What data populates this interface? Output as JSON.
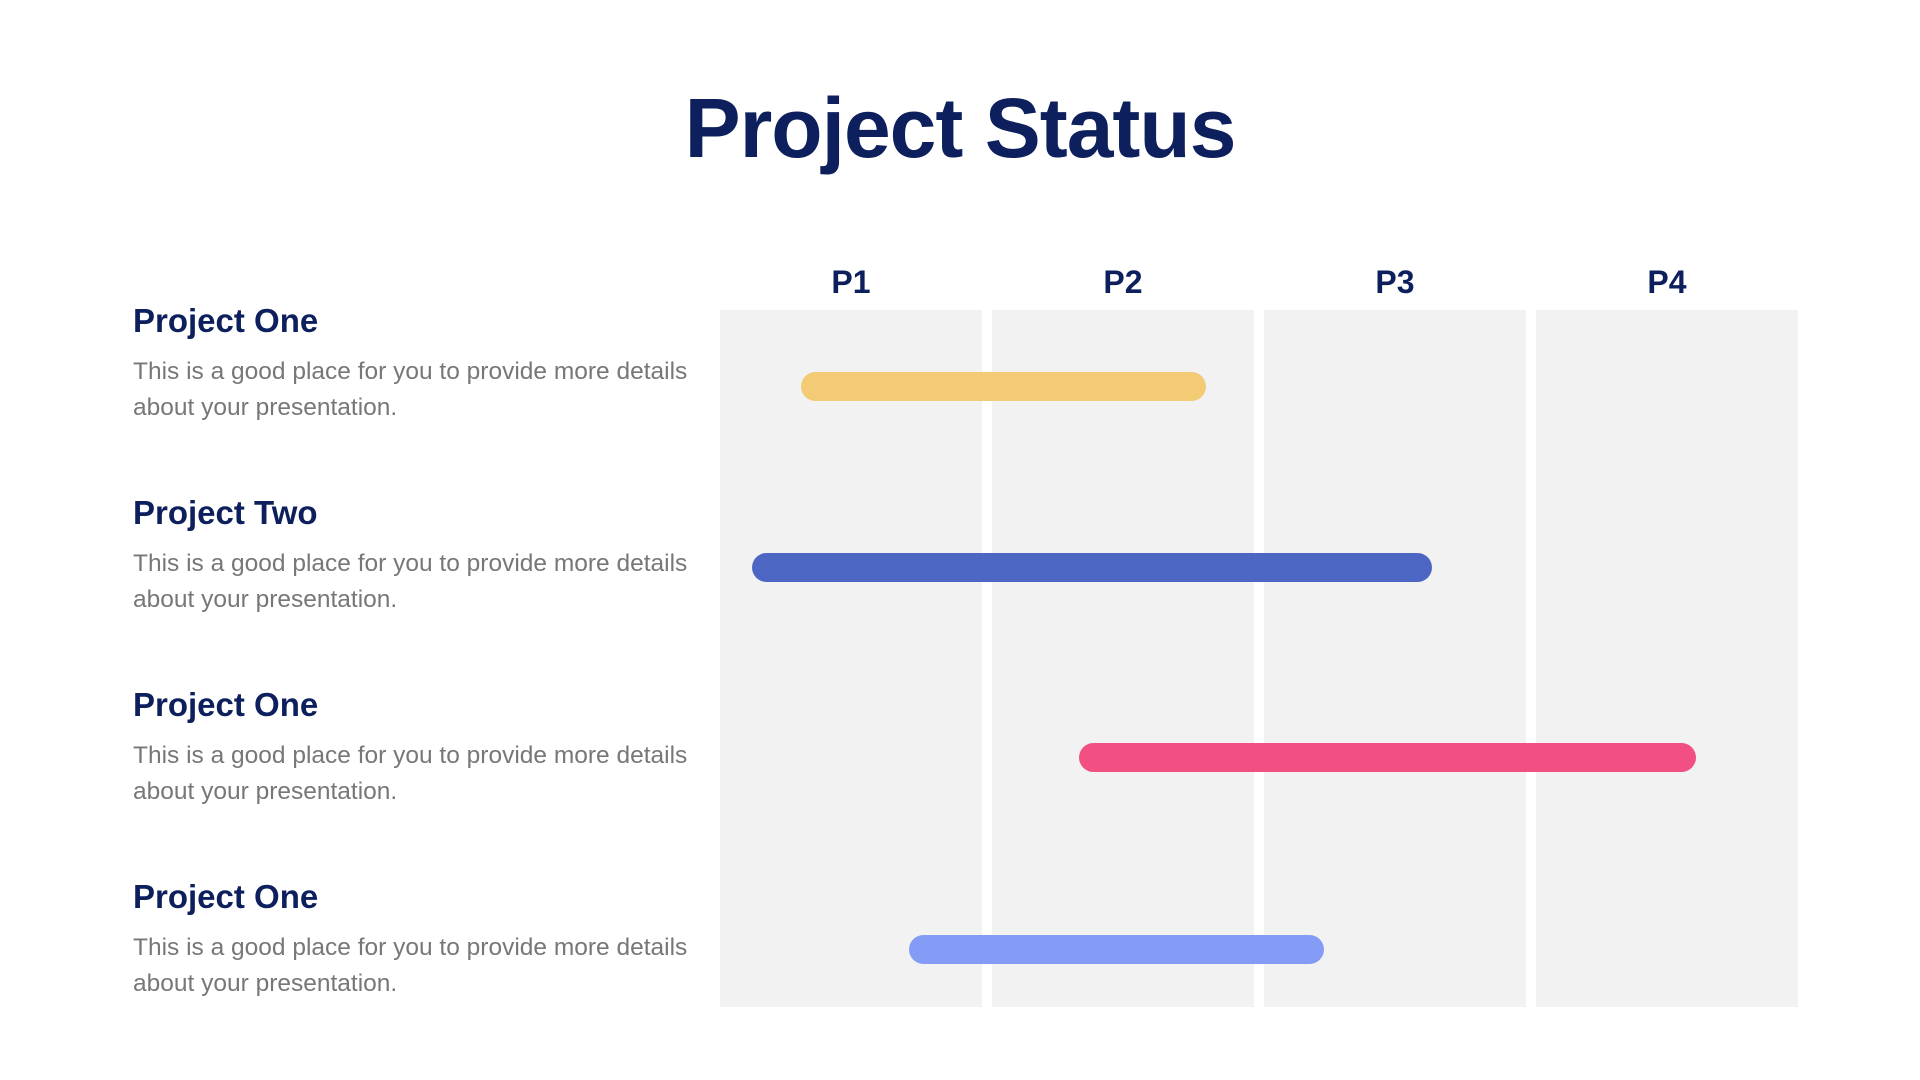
{
  "title": "Project Status",
  "projects": [
    {
      "name": "Project One",
      "description": "This is a good place for you to provide more details about your presentation."
    },
    {
      "name": "Project Two",
      "description": "This is a good place for you to provide more details about your presentation."
    },
    {
      "name": "Project One",
      "description": "This is a good place for you to provide more details about your presentation."
    },
    {
      "name": "Project One",
      "description": "This is a good place for you to provide more details about your presentation."
    }
  ],
  "chart_data": {
    "type": "gantt",
    "periods": [
      "P1",
      "P2",
      "P3",
      "P4"
    ],
    "bars": [
      {
        "start": 0.3,
        "end": 1.8,
        "color": "#f2cb74"
      },
      {
        "start": 0.12,
        "end": 2.64,
        "color": "#4d66c4"
      },
      {
        "start": 1.33,
        "end": 3.62,
        "color": "#f24f82"
      },
      {
        "start": 0.7,
        "end": 2.24,
        "color": "#849cf5"
      }
    ]
  }
}
